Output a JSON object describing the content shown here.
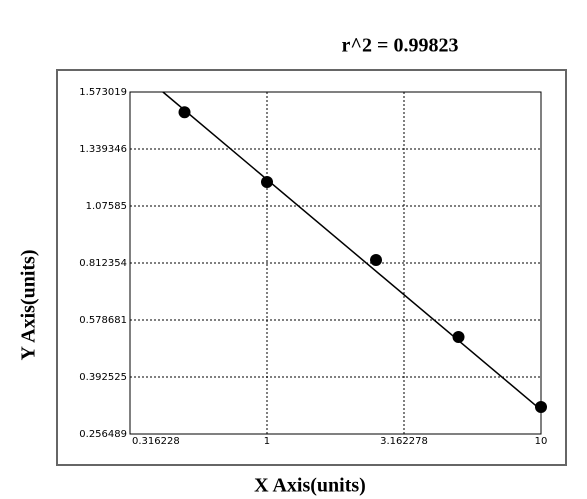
{
  "chart_data": {
    "type": "scatter",
    "title": "r^2 = 0.99823",
    "x_label": "X Axis(units)",
    "y_label": "Y Axis(units)",
    "x": [
      0.5,
      1,
      2.5,
      5,
      10
    ],
    "values": [
      1.49,
      1.187,
      0.826,
      0.523,
      0.321
    ],
    "fit": {
      "x": [
        0.417,
        10
      ],
      "values": [
        1.573,
        0.314
      ]
    },
    "color": "#000000",
    "x_log": true,
    "xlim": [
      0.316228,
      10
    ],
    "xticks": [
      0.316228,
      1,
      3.162278,
      10
    ],
    "ylim": [
      0.256489,
      1.573019
    ],
    "yticks": [
      0.256489,
      0.392525,
      0.578681,
      0.812354,
      1.07585,
      1.339346,
      1.573019
    ],
    "grid": true
  }
}
